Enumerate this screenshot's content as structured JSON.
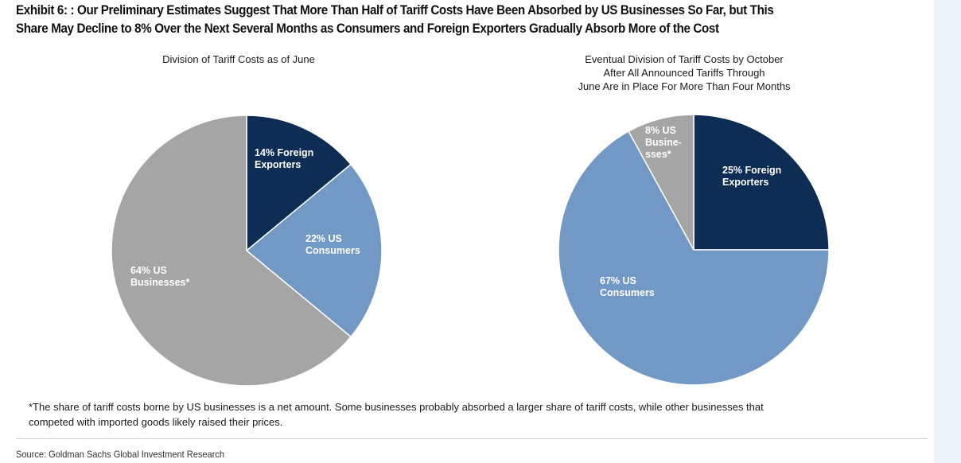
{
  "exhibit_title_line1": "Exhibit 6: : Our Preliminary Estimates Suggest That More Than Half of Tariff Costs Have Been Absorbed by US Businesses So Far, but This",
  "exhibit_title_line2": "Share May Decline to 8% Over the Next Several Months as Consumers and Foreign Exporters Gradually Absorb More of the Cost",
  "footnote_line1": "*The share of tariff costs borne by US businesses is a net amount. Some businesses probably absorbed a larger share of tariff costs, while other businesses that",
  "footnote_line2": "competed with imported goods likely raised their prices.",
  "source": "Source: Goldman Sachs Global Investment Research",
  "colors": {
    "foreign_exporters": "#0e2d55",
    "us_consumers": "#7299c6",
    "us_businesses": "#a5a5a5"
  },
  "chart_data": [
    {
      "type": "pie",
      "title": "Division of Tariff Costs as of June",
      "slices": [
        {
          "name": "Foreign Exporters",
          "value": 14,
          "label_lines": [
            "14% Foreign",
            "Exporters"
          ],
          "color_key": "foreign_exporters"
        },
        {
          "name": "US Consumers",
          "value": 22,
          "label_lines": [
            "22% US",
            "Consumers"
          ],
          "color_key": "us_consumers"
        },
        {
          "name": "US Businesses",
          "value": 64,
          "label_lines": [
            "64% US",
            "Businesses*"
          ],
          "color_key": "us_businesses"
        }
      ]
    },
    {
      "type": "pie",
      "title_lines": [
        "Eventual Division of Tariff Costs by October",
        "After All Announced Tariffs Through",
        "June Are in Place For More Than Four Months"
      ],
      "slices": [
        {
          "name": "Foreign Exporters",
          "value": 25,
          "label_lines": [
            "25% Foreign",
            "Exporters"
          ],
          "color_key": "foreign_exporters"
        },
        {
          "name": "US Consumers",
          "value": 67,
          "label_lines": [
            "67% US",
            "Consumers"
          ],
          "color_key": "us_consumers"
        },
        {
          "name": "US Businesses",
          "value": 8,
          "label_lines": [
            "8% US",
            "Busine-",
            "sses*"
          ],
          "color_key": "us_businesses"
        }
      ]
    }
  ]
}
